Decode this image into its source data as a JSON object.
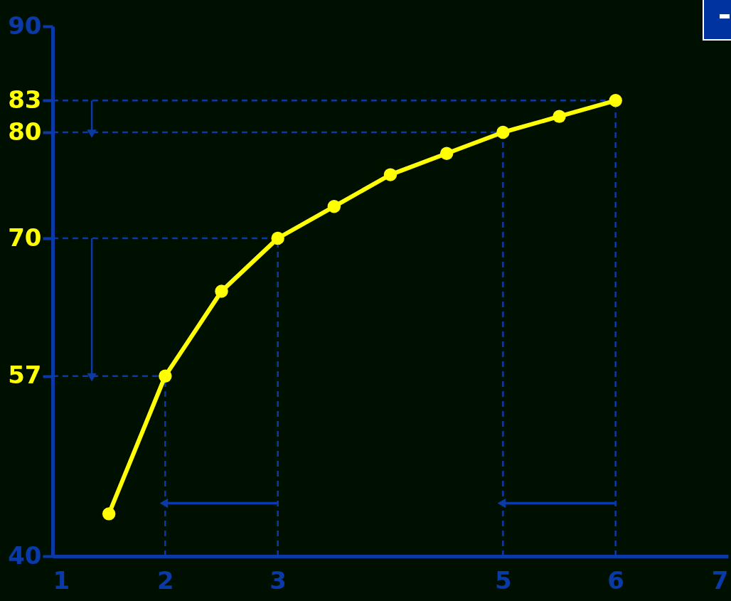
{
  "chart_data": {
    "type": "line",
    "x": [
      1.5,
      2,
      2.5,
      3,
      3.5,
      4,
      4.5,
      5,
      5.5,
      6
    ],
    "series": [
      {
        "color": "#ffff00",
        "values": [
          44,
          57,
          65,
          70,
          73,
          76,
          78,
          80,
          81.5,
          83
        ]
      }
    ],
    "xlim": [
      1,
      7
    ],
    "xticks": [
      1,
      2,
      3,
      5,
      6,
      7
    ],
    "ylim": [
      40,
      90
    ],
    "yticks": [
      40,
      57,
      70,
      80,
      83,
      90
    ],
    "ref_lines": [
      {
        "axis": "y",
        "value": 83,
        "color": "#0a3aa8",
        "line_style": "dashed"
      },
      {
        "axis": "y",
        "value": 80,
        "color": "#0a3aa8",
        "line_style": "dashed"
      },
      {
        "axis": "y",
        "value": 70,
        "color": "#0a3aa8",
        "line_style": "dashed"
      },
      {
        "axis": "y",
        "value": 57,
        "color": "#0a3aa8",
        "line_style": "dashed"
      },
      {
        "axis": "x",
        "value": 2,
        "color": "#0a3aa8",
        "line_style": "dashed"
      },
      {
        "axis": "x",
        "value": 3,
        "color": "#0a3aa8",
        "line_style": "dashed"
      },
      {
        "axis": "x",
        "value": 5,
        "color": "#0a3aa8",
        "line_style": "dashed"
      },
      {
        "axis": "x",
        "value": 6,
        "color": "#0a3aa8",
        "line_style": "dashed"
      }
    ],
    "marker": "circle",
    "line_style": "solid",
    "grid": false
  }
}
